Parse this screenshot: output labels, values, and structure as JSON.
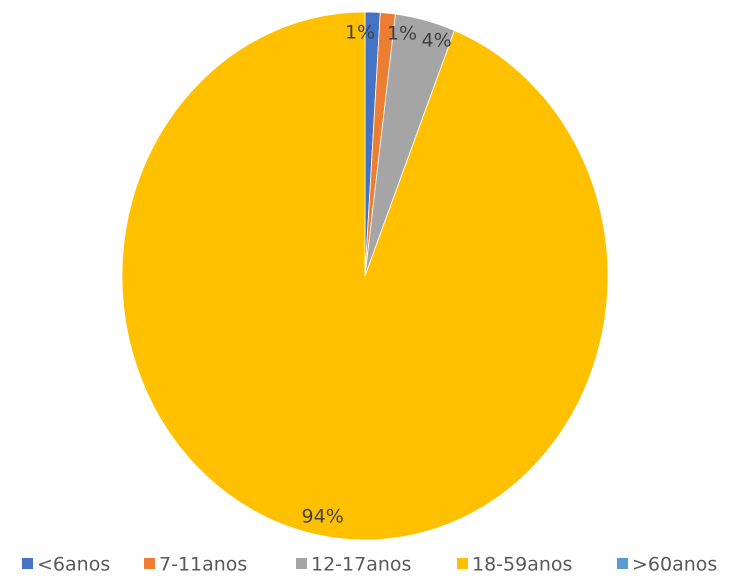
{
  "chart_data": {
    "type": "pie",
    "categories": [
      "<6anos",
      "7-11anos",
      "12-17anos",
      "18-59anos",
      ">60anos"
    ],
    "values": [
      1,
      1,
      4,
      94,
      0
    ],
    "value_labels": [
      "1%",
      "1%",
      "4%",
      "94%",
      null
    ],
    "colors": [
      "#4472c4",
      "#ed7d31",
      "#a5a5a5",
      "#ffc000",
      "#5b9bd5"
    ],
    "legend": "bottom"
  }
}
